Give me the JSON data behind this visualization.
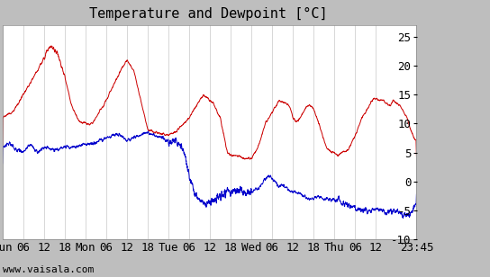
{
  "title": "Temperature and Dewpoint [°C]",
  "ylabel_right_ticks": [
    -10,
    -5,
    0,
    5,
    10,
    15,
    20,
    25
  ],
  "ylim": [
    -10,
    27
  ],
  "xlim": [
    0,
    119.75
  ],
  "xlabel_ticks_labels": [
    "Sun",
    "06",
    "12",
    "18",
    "Mon",
    "06",
    "12",
    "18",
    "Tue",
    "06",
    "12",
    "18",
    "Wed",
    "06",
    "12",
    "18",
    "Thu",
    "06",
    "12",
    "23:45"
  ],
  "xlabel_ticks_positions": [
    0,
    6,
    12,
    18,
    24,
    30,
    36,
    42,
    48,
    54,
    60,
    66,
    72,
    78,
    84,
    90,
    96,
    102,
    108,
    119.75
  ],
  "x_total_hours": 119.75,
  "watermark": "www.vaisala.com",
  "temp_color": "#cc0000",
  "dewpoint_color": "#0000cc",
  "background_color": "#ffffff",
  "outer_bg_color": "#bebebe",
  "grid_color": "#c8c8c8",
  "title_fontsize": 11,
  "tick_fontsize": 9,
  "watermark_fontsize": 8,
  "line_width": 0.7
}
